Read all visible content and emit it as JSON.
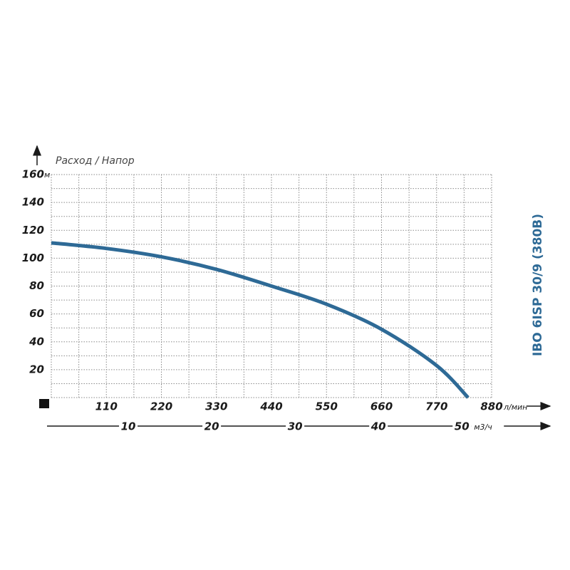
{
  "chart_data": {
    "type": "line",
    "title": "IBO 6ISP 30/9 (380B)",
    "y_label": "Расход / Напор",
    "y_unit": "м",
    "x_unit": "л/мин",
    "x2_unit": "м3/ч",
    "x": [
      0,
      110,
      220,
      330,
      440,
      550,
      660,
      770,
      833
    ],
    "values": [
      111,
      107,
      101,
      92,
      80,
      67,
      49,
      23,
      0
    ],
    "color": "#2e6a96",
    "xlim": [
      0,
      880
    ],
    "xticks": [
      110,
      220,
      330,
      440,
      550,
      660,
      770,
      880
    ],
    "xminor": [
      55,
      165,
      275,
      385,
      495,
      605,
      715,
      825
    ],
    "ylim": [
      0,
      160
    ],
    "yticks": [
      20,
      40,
      60,
      80,
      100,
      120,
      140,
      160
    ],
    "yminor": [
      10,
      30,
      50,
      70,
      90,
      110,
      130,
      150
    ],
    "x2lim": [
      0,
      52.8
    ],
    "x2ticks": [
      10,
      20,
      30,
      40,
      50
    ],
    "grid": true
  }
}
